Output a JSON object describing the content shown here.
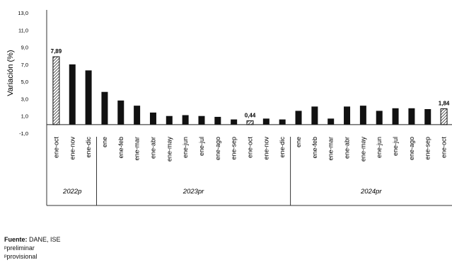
{
  "chart_data": {
    "type": "bar",
    "ylabel": "Variación (%)",
    "ylim": [
      -1.0,
      13.0
    ],
    "yticks": [
      "13,0",
      "11,0",
      "9,0",
      "7,0",
      "5,0",
      "3,0",
      "1,0",
      "-1,0"
    ],
    "ytick_values": [
      13,
      11,
      9,
      7,
      5,
      3,
      1,
      -1
    ],
    "categories": [
      "ene-oct",
      "ene-nov",
      "ene-dic",
      "ene",
      "ene-feb",
      "ene-mar",
      "ene-abr",
      "ene-may",
      "ene-jun",
      "ene-jul",
      "ene-ago",
      "ene-sep",
      "ene-oct",
      "ene-nov",
      "ene-dic",
      "ene",
      "ene-feb",
      "ene-mar",
      "ene-abr",
      "ene-may",
      "ene-jun",
      "ene-jul",
      "ene-ago",
      "ene-sep",
      "ene-oct"
    ],
    "values": [
      7.89,
      7.0,
      6.3,
      3.8,
      2.8,
      2.2,
      1.4,
      1.0,
      1.1,
      1.0,
      0.9,
      0.6,
      0.44,
      0.7,
      0.6,
      1.6,
      2.1,
      0.7,
      2.1,
      2.2,
      1.6,
      1.9,
      1.9,
      1.8,
      1.84
    ],
    "highlighted": [
      0,
      12,
      24
    ],
    "data_labels": [
      {
        "index": 0,
        "text": "7,89"
      },
      {
        "index": 12,
        "text": "0,44"
      },
      {
        "index": 24,
        "text": "1,84"
      }
    ],
    "groups": [
      {
        "label": "2022p",
        "start": 0,
        "end": 2
      },
      {
        "label": "2023pr",
        "start": 3,
        "end": 14
      },
      {
        "label": "2024pr",
        "start": 15,
        "end": 24
      }
    ],
    "colors": {
      "bar": "#111111",
      "highlight_stroke": "#111111"
    }
  },
  "footer": {
    "source_label": "Fuente:",
    "source_text": " DANE, ISE",
    "note_1": "ᵖpreliminar",
    "note_2": "ᵖprovisional"
  }
}
